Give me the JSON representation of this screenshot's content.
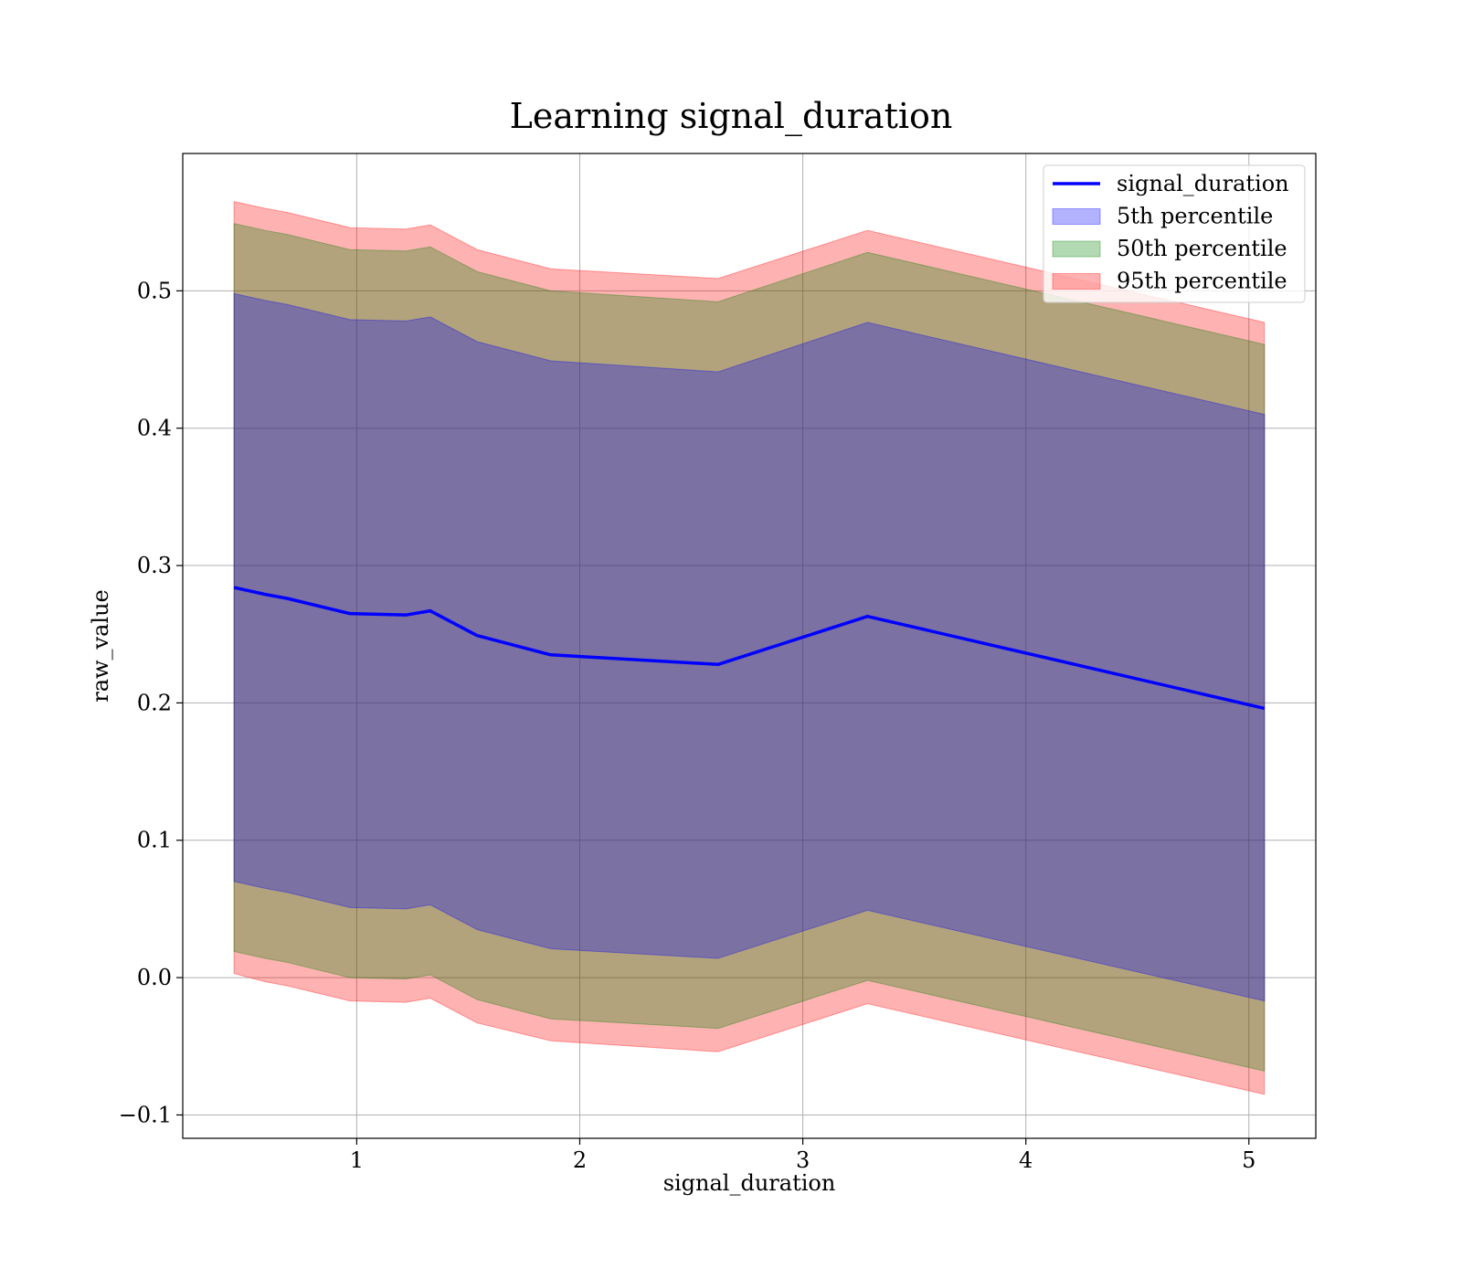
{
  "chart_data": {
    "type": "area",
    "title": "Learning signal_duration",
    "xlabel": "signal_duration",
    "ylabel": "raw_value",
    "xlim": [
      0.22,
      5.3
    ],
    "ylim": [
      -0.117,
      0.6
    ],
    "xticks": [
      1,
      2,
      3,
      4,
      5
    ],
    "yticks": [
      -0.1,
      0.0,
      0.1,
      0.2,
      0.3,
      0.4,
      0.5
    ],
    "ytick_labels": [
      "−0.1",
      "0.0",
      "0.1",
      "0.2",
      "0.3",
      "0.4",
      "0.5"
    ],
    "xtick_labels": [
      "1",
      "2",
      "3",
      "4",
      "5"
    ],
    "grid": true,
    "legend_position": "top-right",
    "x": [
      0.45,
      0.59,
      0.69,
      0.97,
      1.22,
      1.33,
      1.54,
      1.87,
      2.62,
      3.29,
      5.07
    ],
    "line": {
      "name": "signal_duration",
      "color": "#0000ff",
      "values": [
        0.284,
        0.279,
        0.276,
        0.265,
        0.264,
        0.267,
        0.249,
        0.235,
        0.228,
        0.263,
        0.196
      ]
    },
    "bands": [
      {
        "name": "95th percentile",
        "color": "#ff0000",
        "opacity": 0.3,
        "lower": [
          0.003,
          -0.003,
          -0.006,
          -0.017,
          -0.018,
          -0.015,
          -0.033,
          -0.046,
          -0.054,
          -0.019,
          -0.085
        ],
        "upper": [
          0.565,
          0.56,
          0.557,
          0.546,
          0.545,
          0.548,
          0.53,
          0.516,
          0.509,
          0.544,
          0.477
        ]
      },
      {
        "name": "50th percentile",
        "color": "#008000",
        "opacity": 0.3,
        "lower": [
          0.019,
          0.014,
          0.011,
          0.0,
          -0.001,
          0.002,
          -0.016,
          -0.03,
          -0.037,
          -0.002,
          -0.068
        ],
        "upper": [
          0.549,
          0.544,
          0.541,
          0.53,
          0.529,
          0.532,
          0.514,
          0.5,
          0.492,
          0.528,
          0.461
        ]
      },
      {
        "name": "5th percentile",
        "color": "#0000ff",
        "opacity": 0.3,
        "lower": [
          0.07,
          0.065,
          0.062,
          0.051,
          0.05,
          0.053,
          0.035,
          0.021,
          0.014,
          0.049,
          -0.017
        ],
        "upper": [
          0.498,
          0.493,
          0.49,
          0.479,
          0.478,
          0.481,
          0.463,
          0.449,
          0.441,
          0.477,
          0.41
        ]
      }
    ],
    "legend": [
      "signal_duration",
      "5th percentile",
      "50th percentile",
      "95th percentile"
    ]
  }
}
